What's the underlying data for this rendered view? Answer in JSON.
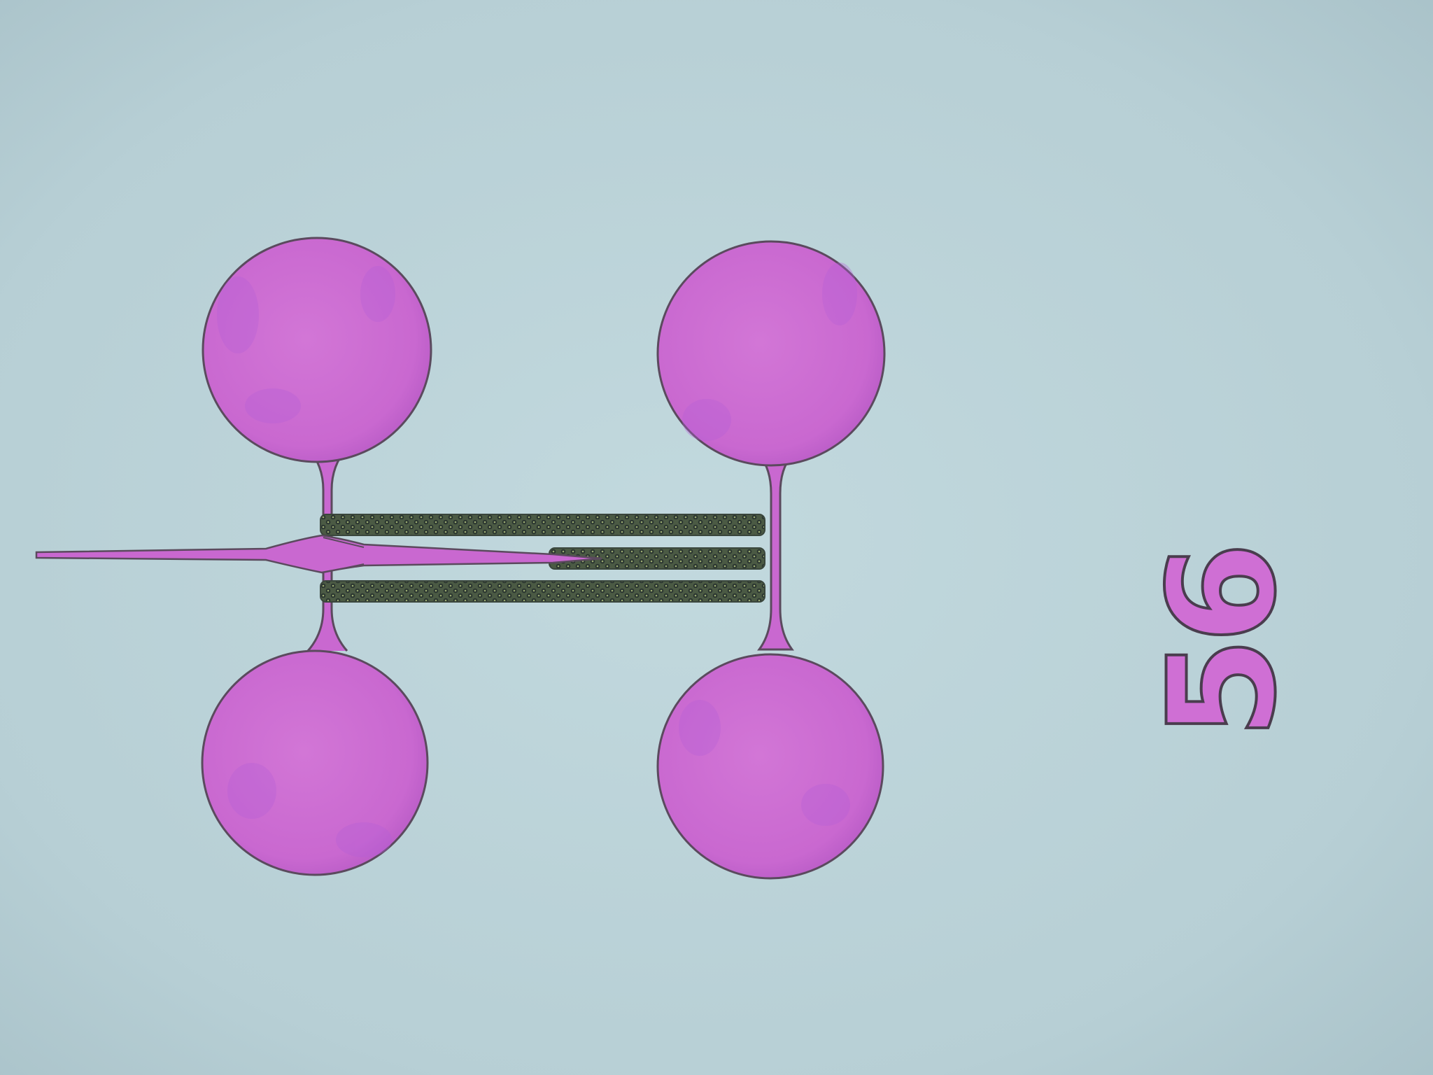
{
  "image": {
    "device_label": "56",
    "colors": {
      "substrate": "#bcd3d8",
      "substrate_edge": "#9fb8c0",
      "metal": "#cf6fd4",
      "metal_dark": "#b455c2",
      "metal_outline": "#5b4a5e",
      "cavity_rail": "#3c4a3e",
      "cavity_dot": "#8fa06e"
    }
  }
}
